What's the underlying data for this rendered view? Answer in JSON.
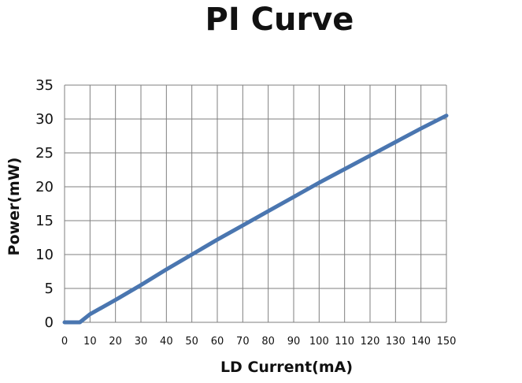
{
  "chart_data": {
    "type": "line",
    "title": "PI Curve",
    "xlabel": "LD Current(mA)",
    "ylabel": "Power(mW)",
    "xlim": [
      0,
      150
    ],
    "ylim": [
      0,
      35
    ],
    "xticks": [
      0,
      10,
      20,
      30,
      40,
      50,
      60,
      70,
      80,
      90,
      100,
      110,
      120,
      130,
      140,
      150
    ],
    "yticks": [
      0,
      5,
      10,
      15,
      20,
      25,
      30,
      35
    ],
    "grid": true,
    "line_color": "#4a76b0",
    "grid_color": "#7f7f7f",
    "series": [
      {
        "x": [
          0,
          6,
          10,
          20,
          30,
          40,
          50,
          60,
          70,
          80,
          90,
          100,
          110,
          120,
          130,
          140,
          150
        ],
        "values": [
          0,
          0,
          1.2,
          3.3,
          5.5,
          7.8,
          10.0,
          12.2,
          14.3,
          16.4,
          18.5,
          20.6,
          22.6,
          24.6,
          26.6,
          28.6,
          30.5
        ]
      }
    ]
  }
}
